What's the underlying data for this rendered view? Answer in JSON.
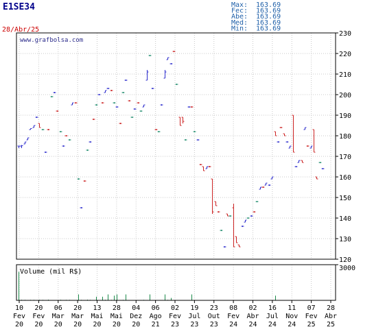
{
  "ticker": "E1SE34",
  "date": "28/Abr/25",
  "watermark": "www.grafbolsa.com",
  "stats": [
    {
      "label": "Max:",
      "value": "163.69"
    },
    {
      "label": "Fec:",
      "value": "163.69"
    },
    {
      "label": "Abe:",
      "value": "163.69"
    },
    {
      "label": "Med:",
      "value": "163.69"
    },
    {
      "label": "Min:",
      "value": "163.69"
    }
  ],
  "colors": {
    "ticker": "#00008b",
    "date": "#cc0000",
    "stats": "#1e5fa8",
    "watermark": "#2a2a8a",
    "up": "#2a2acc",
    "down": "#cc2222",
    "neutral": "#1a8a6a",
    "volume": "#1a8a4a",
    "grid": "#c8c8c8",
    "axis": "#000000"
  },
  "chart_data": [
    {
      "type": "ohlc",
      "ylim": [
        120,
        230
      ],
      "y_ticks": [
        "120",
        "130",
        "140",
        "150",
        "160",
        "170",
        "180",
        "190",
        "200",
        "210",
        "220",
        "230"
      ],
      "x_tick_labels": [
        [
          "10",
          "Fev",
          "20"
        ],
        [
          "20",
          "Fev",
          "20"
        ],
        [
          "06",
          "Mar",
          "20"
        ],
        [
          "20",
          "Mar",
          "20"
        ],
        [
          "13",
          "Mai",
          "20"
        ],
        [
          "28",
          "Mai",
          "20"
        ],
        [
          "04",
          "Dez",
          "20"
        ],
        [
          "06",
          "Ago",
          "21"
        ],
        [
          "02",
          "Fev",
          "23"
        ],
        [
          "19",
          "Jul",
          "23"
        ],
        [
          "23",
          "Out",
          "23"
        ],
        [
          "08",
          "Fev",
          "24"
        ],
        [
          "02",
          "Abr",
          "24"
        ],
        [
          "16",
          "Jul",
          "24"
        ],
        [
          "11",
          "Nov",
          "24"
        ],
        [
          "07",
          "Fev",
          "25"
        ],
        [
          "28",
          "Abr",
          "25"
        ]
      ],
      "bars": [
        [
          175,
          175,
          174,
          175
        ],
        [
          175,
          175.5,
          174,
          175.2
        ],
        [
          176,
          177,
          176,
          177
        ],
        [
          178,
          179,
          178,
          179
        ],
        [
          183,
          183.5,
          183,
          183.5
        ],
        [
          184,
          185,
          184,
          185
        ],
        [
          189,
          189,
          189,
          189
        ],
        [
          186,
          186,
          184,
          184
        ],
        [
          183,
          183,
          183,
          183
        ],
        [
          172,
          172,
          172,
          172
        ],
        [
          183,
          183,
          183,
          183
        ],
        [
          199,
          199,
          199,
          199
        ],
        [
          201,
          201,
          201,
          201
        ],
        [
          192,
          192,
          192,
          192
        ],
        [
          182,
          182,
          182,
          182
        ],
        [
          175,
          175,
          175,
          175
        ],
        [
          180,
          180,
          180,
          180
        ],
        [
          178,
          178,
          178,
          178
        ],
        [
          195,
          196,
          195,
          196
        ],
        [
          196,
          196,
          196,
          196
        ],
        [
          159,
          159,
          159,
          159
        ],
        [
          145,
          145,
          145,
          145
        ],
        [
          158,
          158,
          158,
          158
        ],
        [
          173,
          173,
          173,
          173
        ],
        [
          177,
          177,
          177,
          177
        ],
        [
          188,
          188,
          188,
          188
        ],
        [
          195,
          195,
          195,
          195
        ],
        [
          200,
          200,
          200,
          200
        ],
        [
          196,
          196,
          196,
          196
        ],
        [
          201,
          202,
          201,
          202
        ],
        [
          203,
          203,
          203,
          203
        ],
        [
          202,
          202,
          202,
          202
        ],
        [
          196,
          196,
          196,
          196
        ],
        [
          194,
          194,
          194,
          194
        ],
        [
          186,
          186,
          186,
          186
        ],
        [
          201,
          201,
          201,
          201
        ],
        [
          207,
          207,
          207,
          207
        ],
        [
          197,
          197,
          197,
          197
        ],
        [
          189,
          189,
          189,
          189
        ],
        [
          193,
          193,
          193,
          193
        ],
        [
          196,
          196,
          196,
          196
        ],
        [
          192,
          192,
          192,
          192
        ],
        [
          194,
          195,
          194,
          195
        ],
        [
          207,
          212,
          207,
          211
        ],
        [
          219,
          219,
          219,
          219
        ],
        [
          203,
          203,
          203,
          203
        ],
        [
          183,
          183,
          183,
          183
        ],
        [
          182,
          182,
          182,
          182
        ],
        [
          195,
          195,
          195,
          195
        ],
        [
          208,
          212,
          208,
          211
        ],
        [
          217,
          218,
          217,
          218
        ],
        [
          215,
          215,
          215,
          215
        ],
        [
          221,
          221,
          221,
          221
        ],
        [
          205,
          205,
          205,
          205
        ],
        [
          189,
          189,
          185,
          185
        ],
        [
          189,
          189,
          186,
          187
        ],
        [
          178,
          178,
          178,
          178
        ],
        [
          194,
          194,
          194,
          194
        ],
        [
          194,
          194,
          194,
          194
        ],
        [
          182,
          182,
          182,
          182
        ],
        [
          178,
          178,
          178,
          178
        ],
        [
          166,
          166,
          166,
          166
        ],
        [
          165,
          165,
          163,
          163
        ],
        [
          164,
          165,
          164,
          165
        ],
        [
          165,
          165,
          165,
          165
        ],
        [
          159,
          159,
          142,
          143
        ],
        [
          148,
          148,
          146,
          146
        ],
        [
          143,
          143,
          143,
          143
        ],
        [
          134,
          134,
          134,
          134
        ],
        [
          126,
          126,
          126,
          126
        ],
        [
          142,
          142,
          141,
          141
        ],
        [
          141,
          141,
          141,
          141
        ],
        [
          145,
          147,
          126,
          126
        ],
        [
          131,
          131,
          128,
          128
        ],
        [
          127,
          127,
          126,
          126
        ],
        [
          136,
          136,
          136,
          136
        ],
        [
          138,
          139,
          138,
          139
        ],
        [
          140,
          140,
          140,
          140
        ],
        [
          141,
          141,
          141,
          141
        ],
        [
          143,
          143,
          143,
          143
        ],
        [
          148,
          148,
          148,
          148
        ],
        [
          154,
          155,
          154,
          155
        ],
        [
          155,
          155,
          155,
          155
        ],
        [
          156,
          157,
          156,
          157
        ],
        [
          156,
          156,
          156,
          156
        ],
        [
          159,
          160,
          159,
          160
        ],
        [
          182,
          182,
          180,
          180
        ],
        [
          177,
          177,
          177,
          177
        ],
        [
          184,
          184,
          184,
          184
        ],
        [
          181,
          181,
          180,
          180
        ],
        [
          177,
          177,
          177,
          177
        ],
        [
          174,
          175,
          174,
          175
        ],
        [
          190,
          190,
          172,
          172
        ],
        [
          165,
          165,
          165,
          165
        ],
        [
          167,
          168,
          167,
          168
        ],
        [
          168,
          168,
          167,
          167
        ],
        [
          183,
          184,
          183,
          184
        ],
        [
          175,
          175,
          175,
          175
        ],
        [
          174,
          175,
          174,
          175
        ],
        [
          183,
          183,
          172,
          172
        ],
        [
          160,
          160,
          159,
          159
        ],
        [
          167,
          167,
          167,
          167
        ],
        [
          164,
          164,
          164,
          164
        ]
      ]
    },
    {
      "type": "bar",
      "title": "Volume (mil R$)",
      "ylim": [
        0,
        3000
      ],
      "y_ticks": [
        "3000"
      ],
      "values": [
        2400,
        50,
        40,
        30,
        40,
        40,
        30,
        50,
        40,
        30,
        60,
        20,
        20,
        30,
        50,
        30,
        40,
        40,
        30,
        20,
        500,
        40,
        30,
        60,
        40,
        30,
        300,
        30,
        300,
        50,
        500,
        40,
        400,
        500,
        30,
        40,
        500,
        30,
        30,
        20,
        20,
        30,
        40,
        30,
        500,
        20,
        30,
        20,
        30,
        500,
        40,
        200,
        30,
        20,
        20,
        30,
        20,
        20,
        500,
        30,
        20,
        20,
        20,
        20,
        20,
        20,
        20,
        20,
        20,
        20,
        20,
        20,
        20,
        20,
        20,
        20,
        20,
        20,
        20,
        20,
        20,
        20,
        20,
        20,
        20,
        20,
        400,
        20,
        20,
        20,
        20,
        20,
        20,
        20,
        20,
        20,
        20,
        20,
        20,
        20,
        20,
        20,
        20
      ]
    }
  ]
}
